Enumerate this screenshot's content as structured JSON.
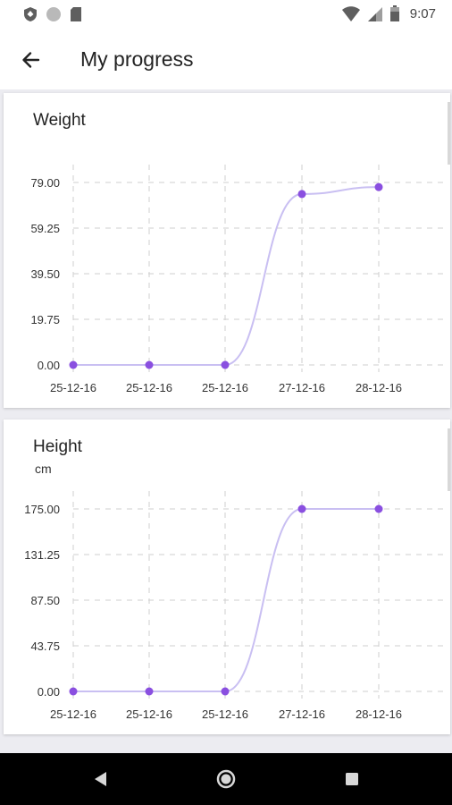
{
  "status_bar": {
    "time": "9:07"
  },
  "app_bar": {
    "title": "My progress"
  },
  "colors": {
    "accent": "#8a4fe0",
    "line": "#c9bff2",
    "grid": "#cfcfcf",
    "tick_text": "#333333",
    "nav_background": "#000000"
  },
  "chart_data": [
    {
      "type": "line",
      "title": "Weight",
      "unit": "",
      "categories": [
        "25-12-16",
        "25-12-16",
        "25-12-16",
        "27-12-16",
        "28-12-16"
      ],
      "values": [
        0,
        0,
        0,
        74,
        77
      ],
      "y_ticks": [
        "0.00",
        "19.75",
        "39.50",
        "59.25",
        "79.00"
      ],
      "ylim": [
        0,
        79
      ],
      "grid": true,
      "curve": "smooth"
    },
    {
      "type": "line",
      "title": "Height",
      "unit": "cm",
      "categories": [
        "25-12-16",
        "25-12-16",
        "25-12-16",
        "27-12-16",
        "28-12-16"
      ],
      "values": [
        0,
        0,
        0,
        175,
        175
      ],
      "y_ticks": [
        "0.00",
        "43.75",
        "87.50",
        "131.25",
        "175.00"
      ],
      "ylim": [
        0,
        175
      ],
      "grid": true,
      "curve": "smooth"
    }
  ]
}
